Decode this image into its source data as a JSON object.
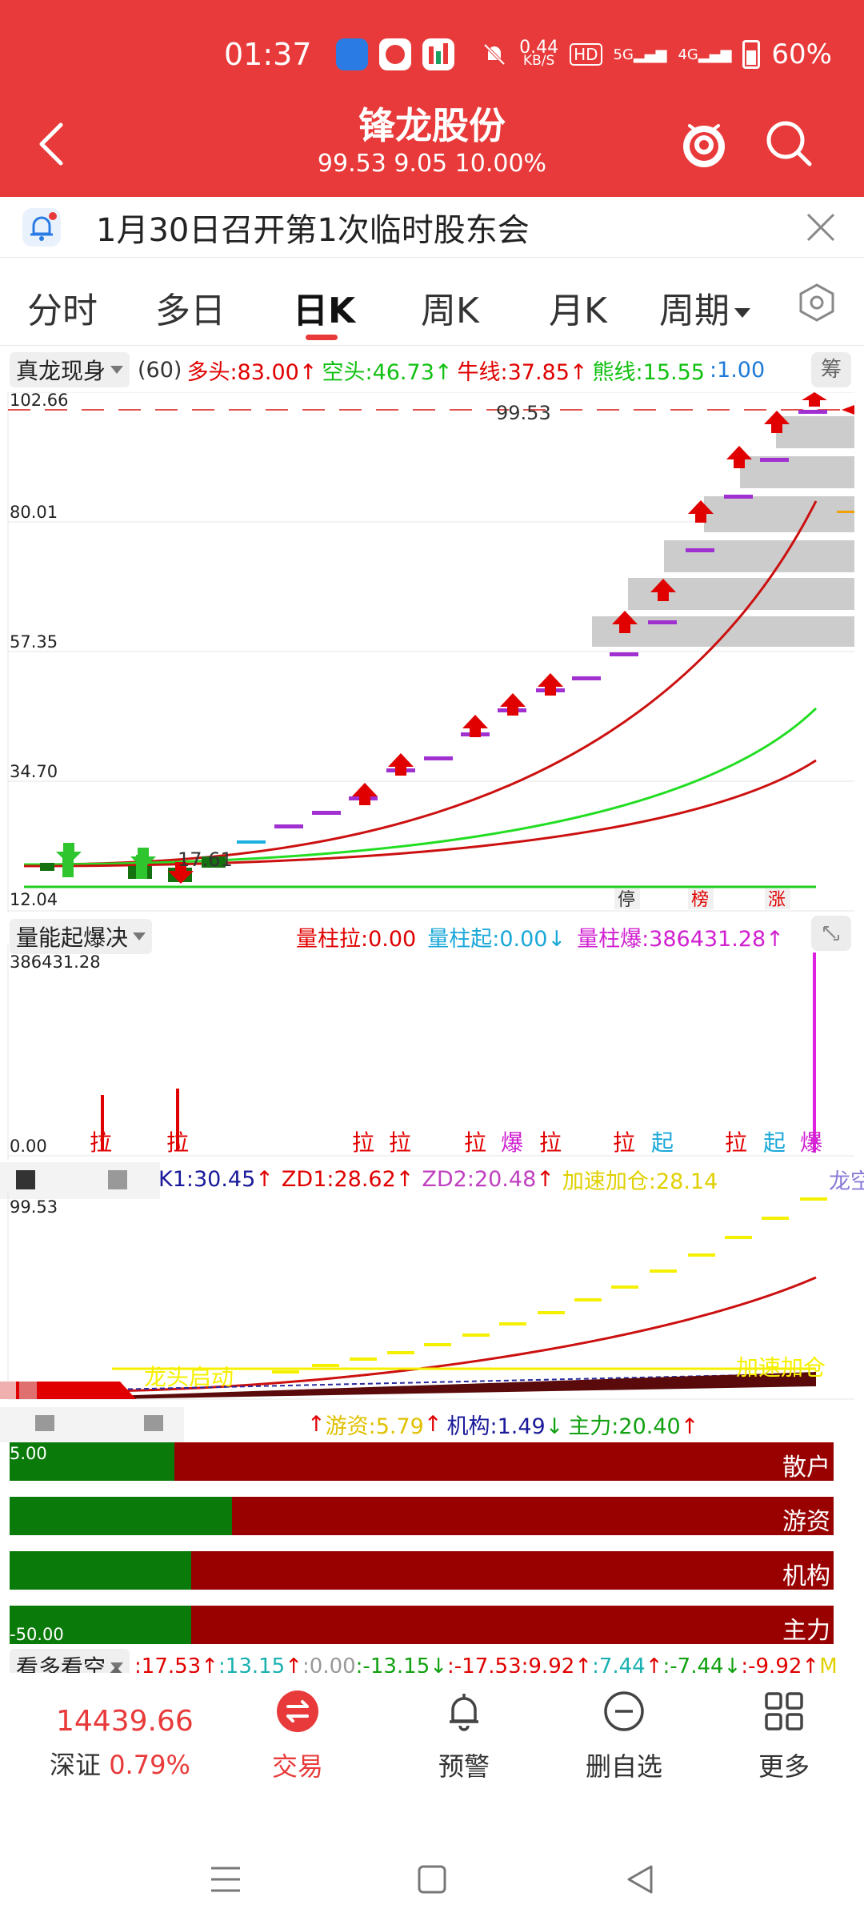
{
  "status_bar": {
    "time": "01:37",
    "net_speed_top": "0.44",
    "net_speed_bottom": "KB/S",
    "hd": "HD",
    "sig1": "5G",
    "sig2": "4G",
    "battery": "60%"
  },
  "header": {
    "title": "锋龙股份",
    "subtitle": "99.53 9.05 10.00%"
  },
  "notice": {
    "text": "1月30日召开第1次临时股东会"
  },
  "tabs": [
    {
      "label": "分时",
      "active": false
    },
    {
      "label": "多日",
      "active": false
    },
    {
      "label": "日K",
      "active": true
    },
    {
      "label": "周K",
      "active": false
    },
    {
      "label": "月K",
      "active": false
    },
    {
      "label": "周期",
      "active": false
    }
  ],
  "main_indicator": {
    "name": "真龙现身",
    "param": "(60)",
    "values": [
      {
        "text": "多头:83.00",
        "color": "#e00000",
        "arrow": "↑"
      },
      {
        "text": "空头:46.73",
        "color": "#10c010",
        "arrow": "↑"
      },
      {
        "text": "牛线:37.85",
        "color": "#e00000",
        "arrow": "↑"
      },
      {
        "text": "熊线:15.55",
        "color": "#10c010",
        "arrow": ""
      },
      {
        "text": ":1.00",
        "color": "#1e7ad8",
        "arrow": ""
      }
    ],
    "side_button": "筹",
    "scale": [
      "102.66",
      "80.01",
      "57.35",
      "34.70",
      "12.04"
    ],
    "price_labels": {
      "high": "99.53",
      "low": "17.61"
    },
    "event_tags": [
      "停",
      "榜",
      "涨"
    ]
  },
  "volume_indicator": {
    "name": "量能起爆决",
    "values": [
      {
        "text": "量柱拉:0.00",
        "color": "#e00000",
        "arrow": ""
      },
      {
        "text": "量柱起:0.00",
        "color": "#1aa8d8",
        "arrow": "↓"
      },
      {
        "text": "量柱爆:386431.28",
        "color": "#d020d0",
        "arrow": "↑"
      }
    ],
    "scale_top": "386431.28",
    "scale_bottom": "0.00",
    "markers": [
      "拉",
      "拉",
      "拉",
      "拉",
      "拉",
      "爆",
      "拉",
      "拉",
      "起",
      "拉",
      "起",
      "爆"
    ]
  },
  "third_indicator": {
    "values": [
      {
        "text": "K1:30.45",
        "color": "#1a1a9a",
        "arrow": "↑"
      },
      {
        "text": "ZD1:28.62",
        "color": "#e00000",
        "arrow": "↑"
      },
      {
        "text": "ZD2:20.48",
        "color": "#c040c0",
        "arrow": "↑"
      },
      {
        "text": "加速加仓:28.14",
        "color": "#e0d000",
        "arrow": ""
      }
    ],
    "right_label": "龙空",
    "scale_top": "99.53",
    "labels": [
      "龙头启动",
      "加速加仓"
    ]
  },
  "capital_indicator": {
    "values": [
      {
        "text": "游资:5.79",
        "color": "#e0c000",
        "arrow": "↑"
      },
      {
        "text": "机构:1.49",
        "color": "#1a1a9a",
        "arrow": "↓"
      },
      {
        "text": "主力:20.40",
        "color": "#10a010",
        "arrow": "↑"
      }
    ],
    "scale_top": "5.00",
    "scale_bottom": "-50.00",
    "rows": [
      {
        "label": "散户",
        "green": 0.2
      },
      {
        "label": "游资",
        "green": 0.27
      },
      {
        "label": "机构",
        "green": 0.22
      },
      {
        "label": "主力",
        "green": 0.22
      }
    ]
  },
  "bottom_indicator": {
    "name": "看多看空",
    "values": [
      {
        "text": ":17.53",
        "color": "#e00000",
        "arrow": "↑"
      },
      {
        "text": ":13.15",
        "color": "#1ab0b0",
        "arrow": "↑"
      },
      {
        "text": ":0.00",
        "color": "#999999",
        "arrow": ""
      },
      {
        "text": ":-13.15",
        "color": "#10a010",
        "arrow": "↓"
      },
      {
        "text": ":-17.53",
        "color": "#e00000",
        "arrow": ""
      },
      {
        "text": ":9.92",
        "color": "#e00000",
        "arrow": "↑"
      },
      {
        "text": ":7.44",
        "color": "#1ab0b0",
        "arrow": "↑"
      },
      {
        "text": ":-7.44",
        "color": "#10a010",
        "arrow": "↓"
      },
      {
        "text": ":-9.92",
        "color": "#e00000",
        "arrow": "↑"
      },
      {
        "text": "M",
        "color": "#e0d000",
        "arrow": ""
      }
    ]
  },
  "bottom_nav": {
    "index_value": "14439.66",
    "index_name": "深证",
    "index_change": "0.79%",
    "items": [
      {
        "label": "交易",
        "icon": "trade-icon"
      },
      {
        "label": "预警",
        "icon": "bell-icon"
      },
      {
        "label": "删自选",
        "icon": "minus-circle-icon"
      },
      {
        "label": "更多",
        "icon": "grid-icon"
      }
    ]
  },
  "colors": {
    "brand_red": "#e83a3a",
    "up_red": "#e00000",
    "down_green": "#10a010",
    "dark_red_bar": "#990000"
  }
}
